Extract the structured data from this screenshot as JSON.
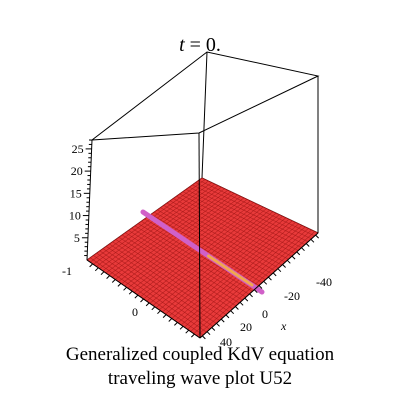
{
  "title_var": "t",
  "title_rest": " = 0.",
  "caption_line1": "Generalized coupled KdV equation",
  "caption_line2": "traveling wave plot U52",
  "chart_data": {
    "type": "surface",
    "title": "t = 0.",
    "xlabel": "x",
    "x_ticks": [
      "-40",
      "-20",
      "0",
      "20",
      "40"
    ],
    "y_ticks": [
      "-1",
      "0"
    ],
    "z_ticks": [
      "5",
      "10",
      "15",
      "20",
      "25"
    ],
    "xlim": [
      -50,
      50
    ],
    "zlim": [
      0,
      27
    ],
    "surface_color": "#e83a3a",
    "ridge_color": "#d060c8",
    "ridge_tip_color": "#f0a850",
    "mesh_color": "#a01515"
  }
}
